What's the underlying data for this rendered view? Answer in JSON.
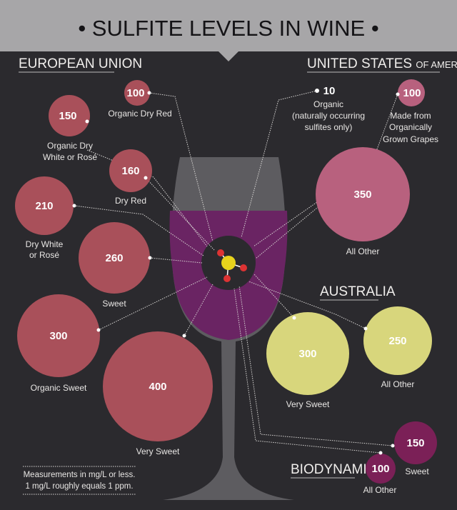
{
  "title": "• SULFITE LEVELS IN WINE •",
  "colors": {
    "eu": "#a9505a",
    "us": "#b8617e",
    "australia": "#d8d67c",
    "biodynamic": "#7b2057",
    "wine": "#6a2463",
    "background": "#2b2a2e",
    "title_bar": "#a7a6a8"
  },
  "eu": {
    "header": "EUROPEAN UNION",
    "items": [
      {
        "value": "100",
        "label": [
          "Organic Dry Red"
        ]
      },
      {
        "value": "150",
        "label": [
          "Organic Dry",
          "White or Rosé"
        ]
      },
      {
        "value": "160",
        "label": [
          "Dry Red"
        ]
      },
      {
        "value": "210",
        "label": [
          "Dry White",
          "or Rosé"
        ]
      },
      {
        "value": "260",
        "label": [
          "Sweet"
        ]
      },
      {
        "value": "300",
        "label": [
          "Organic Sweet"
        ]
      },
      {
        "value": "400",
        "label": [
          "Very Sweet"
        ]
      }
    ]
  },
  "us": {
    "header": "UNITED STATES",
    "header_small": "OF AMERICA",
    "items": [
      {
        "value": "10",
        "label": [
          "Organic",
          "(naturally occurring",
          "sulfites only)"
        ]
      },
      {
        "value": "100",
        "label": [
          "Made from",
          "Organically",
          "Grown Grapes"
        ]
      },
      {
        "value": "350",
        "label": [
          "All Other"
        ]
      }
    ]
  },
  "australia": {
    "header": "AUSTRALIA",
    "items": [
      {
        "value": "300",
        "label": [
          "Very Sweet"
        ]
      },
      {
        "value": "250",
        "label": [
          "All Other"
        ]
      }
    ]
  },
  "biodynamic": {
    "header": "BIODYNAMIC",
    "items": [
      {
        "value": "150",
        "label": [
          "Sweet"
        ]
      },
      {
        "value": "100",
        "label": [
          "All Other"
        ]
      }
    ]
  },
  "note": [
    "Measurements in mg/L or less.",
    "1 mg/L roughly equals 1 ppm."
  ]
}
